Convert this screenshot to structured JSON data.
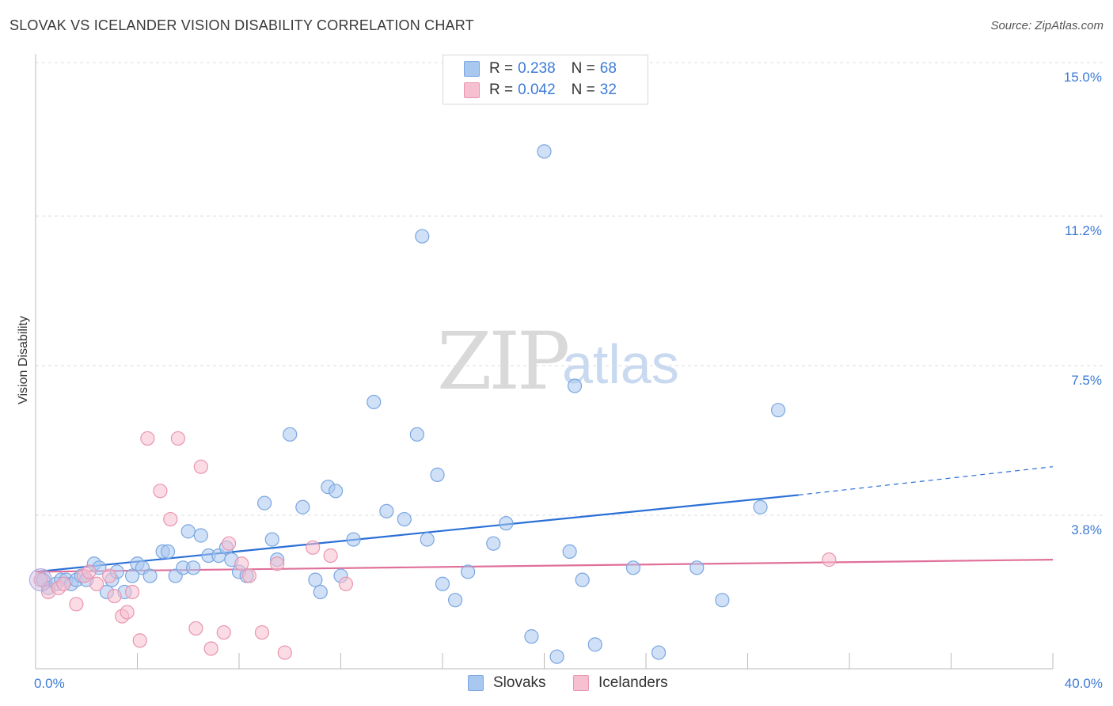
{
  "title": "SLOVAK VS ICELANDER VISION DISABILITY CORRELATION CHART",
  "source": "Source: ZipAtlas.com",
  "watermark": {
    "zip": "ZIP",
    "atlas": "atlas"
  },
  "legend": {
    "rows": [
      {
        "r_label": "R =",
        "r_value": "0.238",
        "n_label": "N =",
        "n_value": "68",
        "color": "#a9c8f0",
        "border": "#7aa6e0"
      },
      {
        "r_label": "R =",
        "r_value": "0.042",
        "n_label": "N =",
        "n_value": "32",
        "color": "#f7c0d0",
        "border": "#e995b0"
      }
    ]
  },
  "bottom_legend": [
    {
      "label": "Slovaks",
      "color": "#a9c8f0",
      "border": "#7aa6e0"
    },
    {
      "label": "Icelanders",
      "color": "#f7c0d0",
      "border": "#e995b0"
    }
  ],
  "chart_data": {
    "type": "scatter",
    "xlabel": "",
    "ylabel": "Vision Disability",
    "xlim": [
      0,
      40
    ],
    "ylim": [
      0,
      15
    ],
    "x_tick_labels": [
      "0.0%",
      "40.0%"
    ],
    "y_ticks": [
      3.8,
      7.5,
      11.2,
      15.0
    ],
    "y_tick_labels": [
      "3.8%",
      "7.5%",
      "11.2%",
      "15.0%"
    ],
    "grid": true,
    "legend_placement": "top-center",
    "series": [
      {
        "name": "Slovaks",
        "color": "#7aa6e0",
        "fill": "#a9c8f0",
        "trend": {
          "x0": 0,
          "y0": 2.4,
          "x1": 30.0,
          "y1": 4.3,
          "dashed_to_x": 40.0,
          "dashed_to_y": 5.0,
          "color": "#2a6fd6"
        },
        "points": [
          [
            0.3,
            2.2
          ],
          [
            0.5,
            2.0
          ],
          [
            0.8,
            2.1
          ],
          [
            1.0,
            2.2
          ],
          [
            1.2,
            2.2
          ],
          [
            1.4,
            2.1
          ],
          [
            1.6,
            2.2
          ],
          [
            1.8,
            2.3
          ],
          [
            2.0,
            2.2
          ],
          [
            2.3,
            2.6
          ],
          [
            2.5,
            2.5
          ],
          [
            2.8,
            1.9
          ],
          [
            3.0,
            2.2
          ],
          [
            3.2,
            2.4
          ],
          [
            3.5,
            1.9
          ],
          [
            3.8,
            2.3
          ],
          [
            4.0,
            2.6
          ],
          [
            4.2,
            2.5
          ],
          [
            4.5,
            2.3
          ],
          [
            5.0,
            2.9
          ],
          [
            5.2,
            2.9
          ],
          [
            5.5,
            2.3
          ],
          [
            5.8,
            2.5
          ],
          [
            6.0,
            3.4
          ],
          [
            6.2,
            2.5
          ],
          [
            6.5,
            3.3
          ],
          [
            6.8,
            2.8
          ],
          [
            7.2,
            2.8
          ],
          [
            7.5,
            3.0
          ],
          [
            7.7,
            2.7
          ],
          [
            8.0,
            2.4
          ],
          [
            8.3,
            2.3
          ],
          [
            9.0,
            4.1
          ],
          [
            9.3,
            3.2
          ],
          [
            9.5,
            2.7
          ],
          [
            10.0,
            5.8
          ],
          [
            10.5,
            4.0
          ],
          [
            11.0,
            2.2
          ],
          [
            11.2,
            1.9
          ],
          [
            11.5,
            4.5
          ],
          [
            11.8,
            4.4
          ],
          [
            12.0,
            2.3
          ],
          [
            12.5,
            3.2
          ],
          [
            13.3,
            6.6
          ],
          [
            13.8,
            3.9
          ],
          [
            14.5,
            3.7
          ],
          [
            15.0,
            5.8
          ],
          [
            15.2,
            10.7
          ],
          [
            15.4,
            3.2
          ],
          [
            15.8,
            4.8
          ],
          [
            16.0,
            2.1
          ],
          [
            16.5,
            1.7
          ],
          [
            17.0,
            2.4
          ],
          [
            18.0,
            3.1
          ],
          [
            18.5,
            3.6
          ],
          [
            19.5,
            0.8
          ],
          [
            20.0,
            12.8
          ],
          [
            20.5,
            0.3
          ],
          [
            21.0,
            2.9
          ],
          [
            21.2,
            7.0
          ],
          [
            21.5,
            2.2
          ],
          [
            22.0,
            0.6
          ],
          [
            23.5,
            2.5
          ],
          [
            24.5,
            0.4
          ],
          [
            26.0,
            2.5
          ],
          [
            27.0,
            1.7
          ],
          [
            28.5,
            4.0
          ],
          [
            29.2,
            6.4
          ]
        ]
      },
      {
        "name": "Icelanders",
        "color": "#e995b0",
        "fill": "#f7c0d0",
        "trend": {
          "x0": 0,
          "y0": 2.4,
          "x1": 40.0,
          "y1": 2.7,
          "color": "#e0709a"
        },
        "points": [
          [
            0.2,
            2.2
          ],
          [
            0.5,
            1.9
          ],
          [
            0.9,
            2.0
          ],
          [
            1.1,
            2.1
          ],
          [
            1.6,
            1.6
          ],
          [
            1.9,
            2.3
          ],
          [
            2.1,
            2.4
          ],
          [
            2.4,
            2.1
          ],
          [
            2.9,
            2.3
          ],
          [
            3.1,
            1.8
          ],
          [
            3.4,
            1.3
          ],
          [
            3.6,
            1.4
          ],
          [
            3.8,
            1.9
          ],
          [
            4.1,
            0.7
          ],
          [
            4.4,
            5.7
          ],
          [
            4.9,
            4.4
          ],
          [
            5.3,
            3.7
          ],
          [
            5.6,
            5.7
          ],
          [
            6.3,
            1.0
          ],
          [
            6.5,
            5.0
          ],
          [
            6.9,
            0.5
          ],
          [
            7.4,
            0.9
          ],
          [
            7.6,
            3.1
          ],
          [
            8.1,
            2.6
          ],
          [
            8.4,
            2.3
          ],
          [
            8.9,
            0.9
          ],
          [
            9.5,
            2.6
          ],
          [
            9.8,
            0.4
          ],
          [
            10.9,
            3.0
          ],
          [
            11.6,
            2.8
          ],
          [
            12.2,
            2.1
          ],
          [
            31.2,
            2.7
          ]
        ]
      }
    ]
  }
}
